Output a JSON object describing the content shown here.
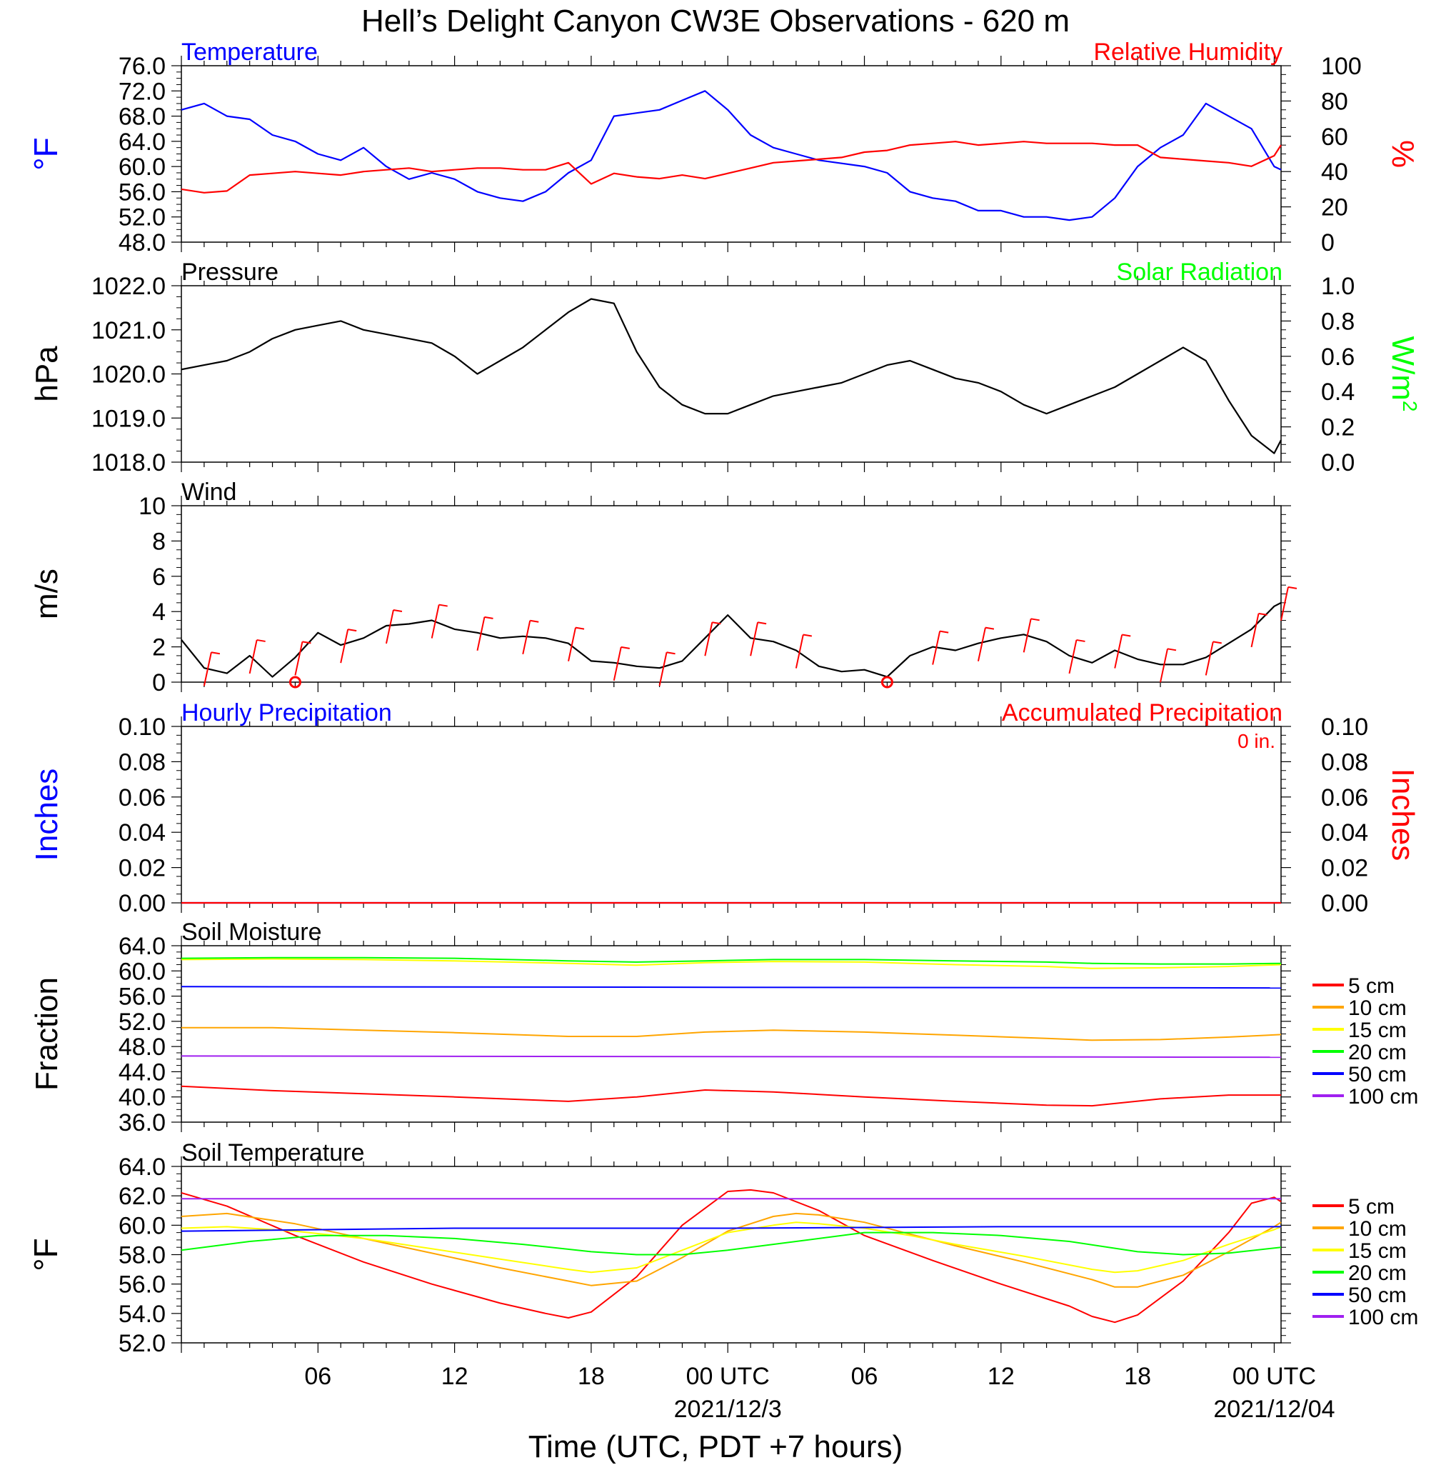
{
  "title": "Hell’s Delight Canyon CW3E Observations - 620 m",
  "xlabel": "Time (UTC, PDT +7 hours)",
  "x_ticks": [
    "06",
    "12",
    "18",
    "00 UTC",
    "06",
    "12",
    "18",
    "00 UTC"
  ],
  "x_dates": [
    "2021/12/3",
    "2021/12/04"
  ],
  "chart_data": [
    {
      "id": "temp_rh",
      "type": "line",
      "title_left": "Temperature",
      "title_right": "Relative Humidity",
      "ylabel_left": "°F",
      "ylabel_right": "%",
      "ylim_left": [
        48,
        76
      ],
      "ylim_right": [
        0,
        100
      ],
      "yticks_left": [
        "48.0",
        "52.0",
        "56.0",
        "60.0",
        "64.0",
        "68.0",
        "72.0",
        "76.0"
      ],
      "yticks_right": [
        "0",
        "20",
        "40",
        "60",
        "80",
        "100"
      ],
      "colors": {
        "left": "#0000ff",
        "right": "#ff0000"
      },
      "series": [
        {
          "axis": "left",
          "x": [
            0,
            1,
            2,
            3,
            4,
            5,
            6,
            7,
            8,
            9,
            10,
            11,
            12,
            13,
            14,
            15,
            16,
            17,
            18,
            19,
            20,
            21,
            22,
            23,
            24,
            25,
            26,
            27,
            28,
            29,
            30,
            31,
            32,
            33,
            34,
            35,
            36,
            37,
            38,
            39,
            40,
            41,
            42,
            43,
            44,
            45,
            46,
            47,
            48,
            48.3
          ],
          "values": [
            69,
            70,
            68,
            67.5,
            65,
            64,
            62,
            61,
            63,
            60,
            58,
            59,
            58,
            56,
            55,
            54.5,
            56,
            59,
            61,
            68,
            68.5,
            69,
            70.5,
            72,
            69,
            65,
            63,
            62,
            61,
            60.5,
            60,
            59,
            56,
            55,
            54.5,
            53,
            53,
            52,
            52,
            51.5,
            52,
            55,
            60,
            63,
            65,
            70,
            68,
            66,
            60,
            59.5
          ]
        },
        {
          "axis": "right",
          "x": [
            0,
            1,
            2,
            3,
            4,
            5,
            6,
            7,
            8,
            9,
            10,
            11,
            12,
            13,
            14,
            15,
            16,
            17,
            18,
            19,
            20,
            21,
            22,
            23,
            24,
            25,
            26,
            27,
            28,
            29,
            30,
            31,
            32,
            33,
            34,
            35,
            36,
            37,
            38,
            39,
            40,
            41,
            42,
            43,
            44,
            45,
            46,
            47,
            48,
            48.3
          ],
          "values": [
            30,
            28,
            29,
            38,
            39,
            40,
            39,
            38,
            40,
            41,
            42,
            40,
            41,
            42,
            42,
            41,
            41,
            45,
            33,
            39,
            37,
            36,
            38,
            36,
            39,
            42,
            45,
            46,
            47,
            48,
            51,
            52,
            55,
            56,
            57,
            55,
            56,
            57,
            56,
            56,
            56,
            55,
            55,
            48,
            47,
            46,
            45,
            43,
            49,
            55
          ]
        }
      ]
    },
    {
      "id": "pressure",
      "type": "line",
      "title_left": "Pressure",
      "title_right": "Solar Radiation",
      "ylabel_left": "hPa",
      "ylabel_right": "W/m",
      "ylabel_right_sup": "2",
      "ylim_left": [
        1018,
        1022
      ],
      "ylim_right": [
        0,
        1
      ],
      "yticks_left": [
        "1018.0",
        "1019.0",
        "1020.0",
        "1021.0",
        "1022.0"
      ],
      "yticks_right": [
        "0.0",
        "0.2",
        "0.4",
        "0.6",
        "0.8",
        "1.0"
      ],
      "colors": {
        "left": "#000000",
        "right": "#00ff00"
      },
      "series": [
        {
          "axis": "left",
          "x": [
            0,
            1,
            2,
            3,
            4,
            5,
            6,
            7,
            8,
            9,
            10,
            11,
            12,
            13,
            14,
            15,
            16,
            17,
            18,
            19,
            20,
            21,
            22,
            23,
            24,
            25,
            26,
            27,
            28,
            29,
            30,
            31,
            32,
            33,
            34,
            35,
            36,
            37,
            38,
            39,
            40,
            41,
            42,
            43,
            44,
            45,
            46,
            47,
            48,
            48.3
          ],
          "values": [
            1020.1,
            1020.2,
            1020.3,
            1020.5,
            1020.8,
            1021.0,
            1021.1,
            1021.2,
            1021.0,
            1020.9,
            1020.8,
            1020.7,
            1020.4,
            1020.0,
            1020.3,
            1020.6,
            1021.0,
            1021.4,
            1021.7,
            1021.6,
            1020.5,
            1019.7,
            1019.3,
            1019.1,
            1019.1,
            1019.3,
            1019.5,
            1019.6,
            1019.7,
            1019.8,
            1020.0,
            1020.2,
            1020.3,
            1020.1,
            1019.9,
            1019.8,
            1019.6,
            1019.3,
            1019.1,
            1019.3,
            1019.5,
            1019.7,
            1020.0,
            1020.3,
            1020.6,
            1020.3,
            1019.4,
            1018.6,
            1018.2,
            1018.5
          ]
        }
      ]
    },
    {
      "id": "wind",
      "type": "line",
      "title_left": "Wind",
      "ylabel_left": "m/s",
      "ylim_left": [
        0,
        10
      ],
      "yticks_left": [
        "0",
        "2",
        "4",
        "6",
        "8",
        "10"
      ],
      "colors": {
        "line": "#000000",
        "barbs": "#ff0000"
      },
      "series": [
        {
          "axis": "left",
          "x": [
            0,
            1,
            2,
            3,
            4,
            5,
            6,
            7,
            8,
            9,
            10,
            11,
            12,
            13,
            14,
            15,
            16,
            17,
            18,
            19,
            20,
            21,
            22,
            23,
            24,
            25,
            26,
            27,
            28,
            29,
            30,
            31,
            32,
            33,
            34,
            35,
            36,
            37,
            38,
            39,
            40,
            41,
            42,
            43,
            44,
            45,
            46,
            47,
            48,
            48.3
          ],
          "values": [
            2.4,
            0.8,
            0.5,
            1.5,
            0.3,
            1.4,
            2.8,
            2.1,
            2.5,
            3.2,
            3.3,
            3.5,
            3.0,
            2.8,
            2.5,
            2.6,
            2.5,
            2.2,
            1.2,
            1.1,
            0.9,
            0.8,
            1.2,
            2.5,
            3.8,
            2.5,
            2.3,
            1.8,
            0.9,
            0.6,
            0.7,
            0.3,
            1.5,
            2.0,
            1.8,
            2.2,
            2.5,
            2.7,
            2.3,
            1.5,
            1.1,
            1.8,
            1.3,
            1.0,
            1.0,
            1.4,
            2.2,
            3.0,
            4.3,
            4.5
          ]
        }
      ],
      "calm_markers": [
        5,
        31
      ]
    },
    {
      "id": "precip",
      "type": "line",
      "title_left": "Hourly Precipitation",
      "title_right": "Accumulated Precipitation",
      "annotation": "0 in.",
      "ylabel_left": "Inches",
      "ylabel_right": "Inches",
      "ylim_left": [
        0,
        0.1
      ],
      "ylim_right": [
        0,
        0.1
      ],
      "yticks_left": [
        "0.00",
        "0.02",
        "0.04",
        "0.06",
        "0.08",
        "0.10"
      ],
      "yticks_right": [
        "0.00",
        "0.02",
        "0.04",
        "0.06",
        "0.08",
        "0.10"
      ],
      "colors": {
        "left": "#0000ff",
        "right": "#ff0000"
      },
      "series": [
        {
          "axis": "left",
          "x": [
            0,
            48.3
          ],
          "values": [
            0,
            0
          ]
        },
        {
          "axis": "right",
          "x": [
            0,
            48.3
          ],
          "values": [
            0,
            0
          ]
        }
      ]
    },
    {
      "id": "soil_moisture",
      "type": "line",
      "title_left": "Soil Moisture",
      "ylabel_left": "Fraction",
      "ylim_left": [
        36,
        64
      ],
      "yticks_left": [
        "36.0",
        "40.0",
        "44.0",
        "48.0",
        "52.0",
        "56.0",
        "60.0",
        "64.0"
      ],
      "legend": [
        "5 cm",
        "10 cm",
        "15 cm",
        "20 cm",
        "50 cm",
        "100 cm"
      ],
      "series": [
        {
          "name": "5 cm",
          "color": "#ff0000",
          "x": [
            0,
            4,
            8,
            12,
            17,
            20,
            23,
            26,
            30,
            34,
            38,
            40,
            43,
            46,
            48.3
          ],
          "values": [
            41.7,
            41.0,
            40.5,
            40.0,
            39.3,
            40.0,
            41.1,
            40.8,
            40.0,
            39.3,
            38.7,
            38.6,
            39.7,
            40.3,
            40.3
          ]
        },
        {
          "name": "10 cm",
          "color": "#ffa500",
          "x": [
            0,
            4,
            8,
            12,
            17,
            20,
            23,
            26,
            30,
            34,
            38,
            40,
            43,
            46,
            48.3
          ],
          "values": [
            51.0,
            51.0,
            50.6,
            50.2,
            49.6,
            49.6,
            50.3,
            50.6,
            50.3,
            49.8,
            49.3,
            49.0,
            49.1,
            49.5,
            49.9
          ]
        },
        {
          "name": "15 cm",
          "color": "#ffff00",
          "x": [
            0,
            4,
            8,
            12,
            17,
            20,
            23,
            26,
            30,
            34,
            38,
            40,
            43,
            46,
            48.3
          ],
          "values": [
            61.8,
            61.9,
            61.8,
            61.6,
            61.2,
            60.9,
            61.3,
            61.5,
            61.4,
            61.0,
            60.7,
            60.4,
            60.5,
            60.7,
            61.0
          ]
        },
        {
          "name": "20 cm",
          "color": "#00ff00",
          "x": [
            0,
            4,
            8,
            12,
            17,
            20,
            23,
            26,
            30,
            34,
            38,
            40,
            43,
            46,
            48.3
          ],
          "values": [
            62.0,
            62.1,
            62.1,
            62.0,
            61.6,
            61.4,
            61.6,
            61.8,
            61.8,
            61.6,
            61.4,
            61.2,
            61.1,
            61.1,
            61.2
          ]
        },
        {
          "name": "50 cm",
          "color": "#0000ff",
          "x": [
            0,
            48.3
          ],
          "values": [
            57.5,
            57.3
          ]
        },
        {
          "name": "100 cm",
          "color": "#a020f0",
          "x": [
            0,
            48.3
          ],
          "values": [
            46.5,
            46.3
          ]
        }
      ]
    },
    {
      "id": "soil_temperature",
      "type": "line",
      "title_left": "Soil Temperature",
      "ylabel_left": "°F",
      "ylim_left": [
        52,
        64
      ],
      "yticks_left": [
        "52.0",
        "54.0",
        "56.0",
        "58.0",
        "60.0",
        "62.0",
        "64.0"
      ],
      "legend": [
        "5 cm",
        "10 cm",
        "15 cm",
        "20 cm",
        "50 cm",
        "100 cm"
      ],
      "series": [
        {
          "name": "5 cm",
          "color": "#ff0000",
          "x": [
            0,
            2,
            5,
            8,
            11,
            14,
            16,
            17,
            18,
            20,
            22,
            24,
            25,
            26,
            28,
            30,
            33,
            36,
            39,
            40,
            41,
            42,
            44,
            46,
            47,
            48,
            48.3
          ],
          "values": [
            62.2,
            61.3,
            59.3,
            57.5,
            56.0,
            54.7,
            54.0,
            53.7,
            54.1,
            56.5,
            60.0,
            62.3,
            62.4,
            62.2,
            61.0,
            59.3,
            57.6,
            56.0,
            54.5,
            53.8,
            53.4,
            53.9,
            56.2,
            59.5,
            61.5,
            61.9,
            61.6
          ]
        },
        {
          "name": "10 cm",
          "color": "#ffa500",
          "x": [
            0,
            2,
            5,
            8,
            11,
            14,
            17,
            18,
            20,
            22,
            24,
            26,
            27,
            28,
            30,
            32,
            34,
            37,
            40,
            41,
            42,
            44,
            46,
            48,
            48.3
          ],
          "values": [
            60.6,
            60.8,
            60.1,
            59.1,
            58.1,
            57.1,
            56.2,
            55.9,
            56.2,
            57.8,
            59.6,
            60.6,
            60.8,
            60.7,
            60.2,
            59.4,
            58.6,
            57.5,
            56.3,
            55.8,
            55.8,
            56.6,
            58.2,
            59.9,
            60.2
          ]
        },
        {
          "name": "15 cm",
          "color": "#ffff00",
          "x": [
            0,
            2,
            5,
            8,
            11,
            14,
            17,
            18,
            20,
            22,
            24,
            26,
            27,
            28,
            30,
            32,
            34,
            37,
            40,
            41,
            42,
            44,
            46,
            48,
            48.3
          ],
          "values": [
            59.8,
            59.9,
            59.6,
            59.1,
            58.4,
            57.7,
            57.0,
            56.8,
            57.1,
            58.3,
            59.5,
            60.0,
            60.2,
            60.1,
            59.8,
            59.3,
            58.7,
            57.9,
            57.0,
            56.8,
            56.9,
            57.6,
            58.7,
            59.7,
            59.9
          ]
        },
        {
          "name": "20 cm",
          "color": "#00ff00",
          "x": [
            0,
            3,
            6,
            9,
            12,
            15,
            18,
            20,
            22,
            24,
            27,
            30,
            33,
            36,
            39,
            42,
            44,
            46,
            48.3
          ],
          "values": [
            58.3,
            58.9,
            59.3,
            59.3,
            59.1,
            58.7,
            58.2,
            58.0,
            58.0,
            58.3,
            58.9,
            59.5,
            59.5,
            59.3,
            58.9,
            58.2,
            58.0,
            58.1,
            58.5
          ]
        },
        {
          "name": "50 cm",
          "color": "#0000ff",
          "x": [
            0,
            12,
            24,
            36,
            48.3
          ],
          "values": [
            59.6,
            59.8,
            59.8,
            59.9,
            59.9
          ]
        },
        {
          "name": "100 cm",
          "color": "#a020f0",
          "x": [
            0,
            12,
            24,
            36,
            48.3
          ],
          "values": [
            61.8,
            61.8,
            61.8,
            61.8,
            61.8
          ]
        }
      ]
    }
  ]
}
